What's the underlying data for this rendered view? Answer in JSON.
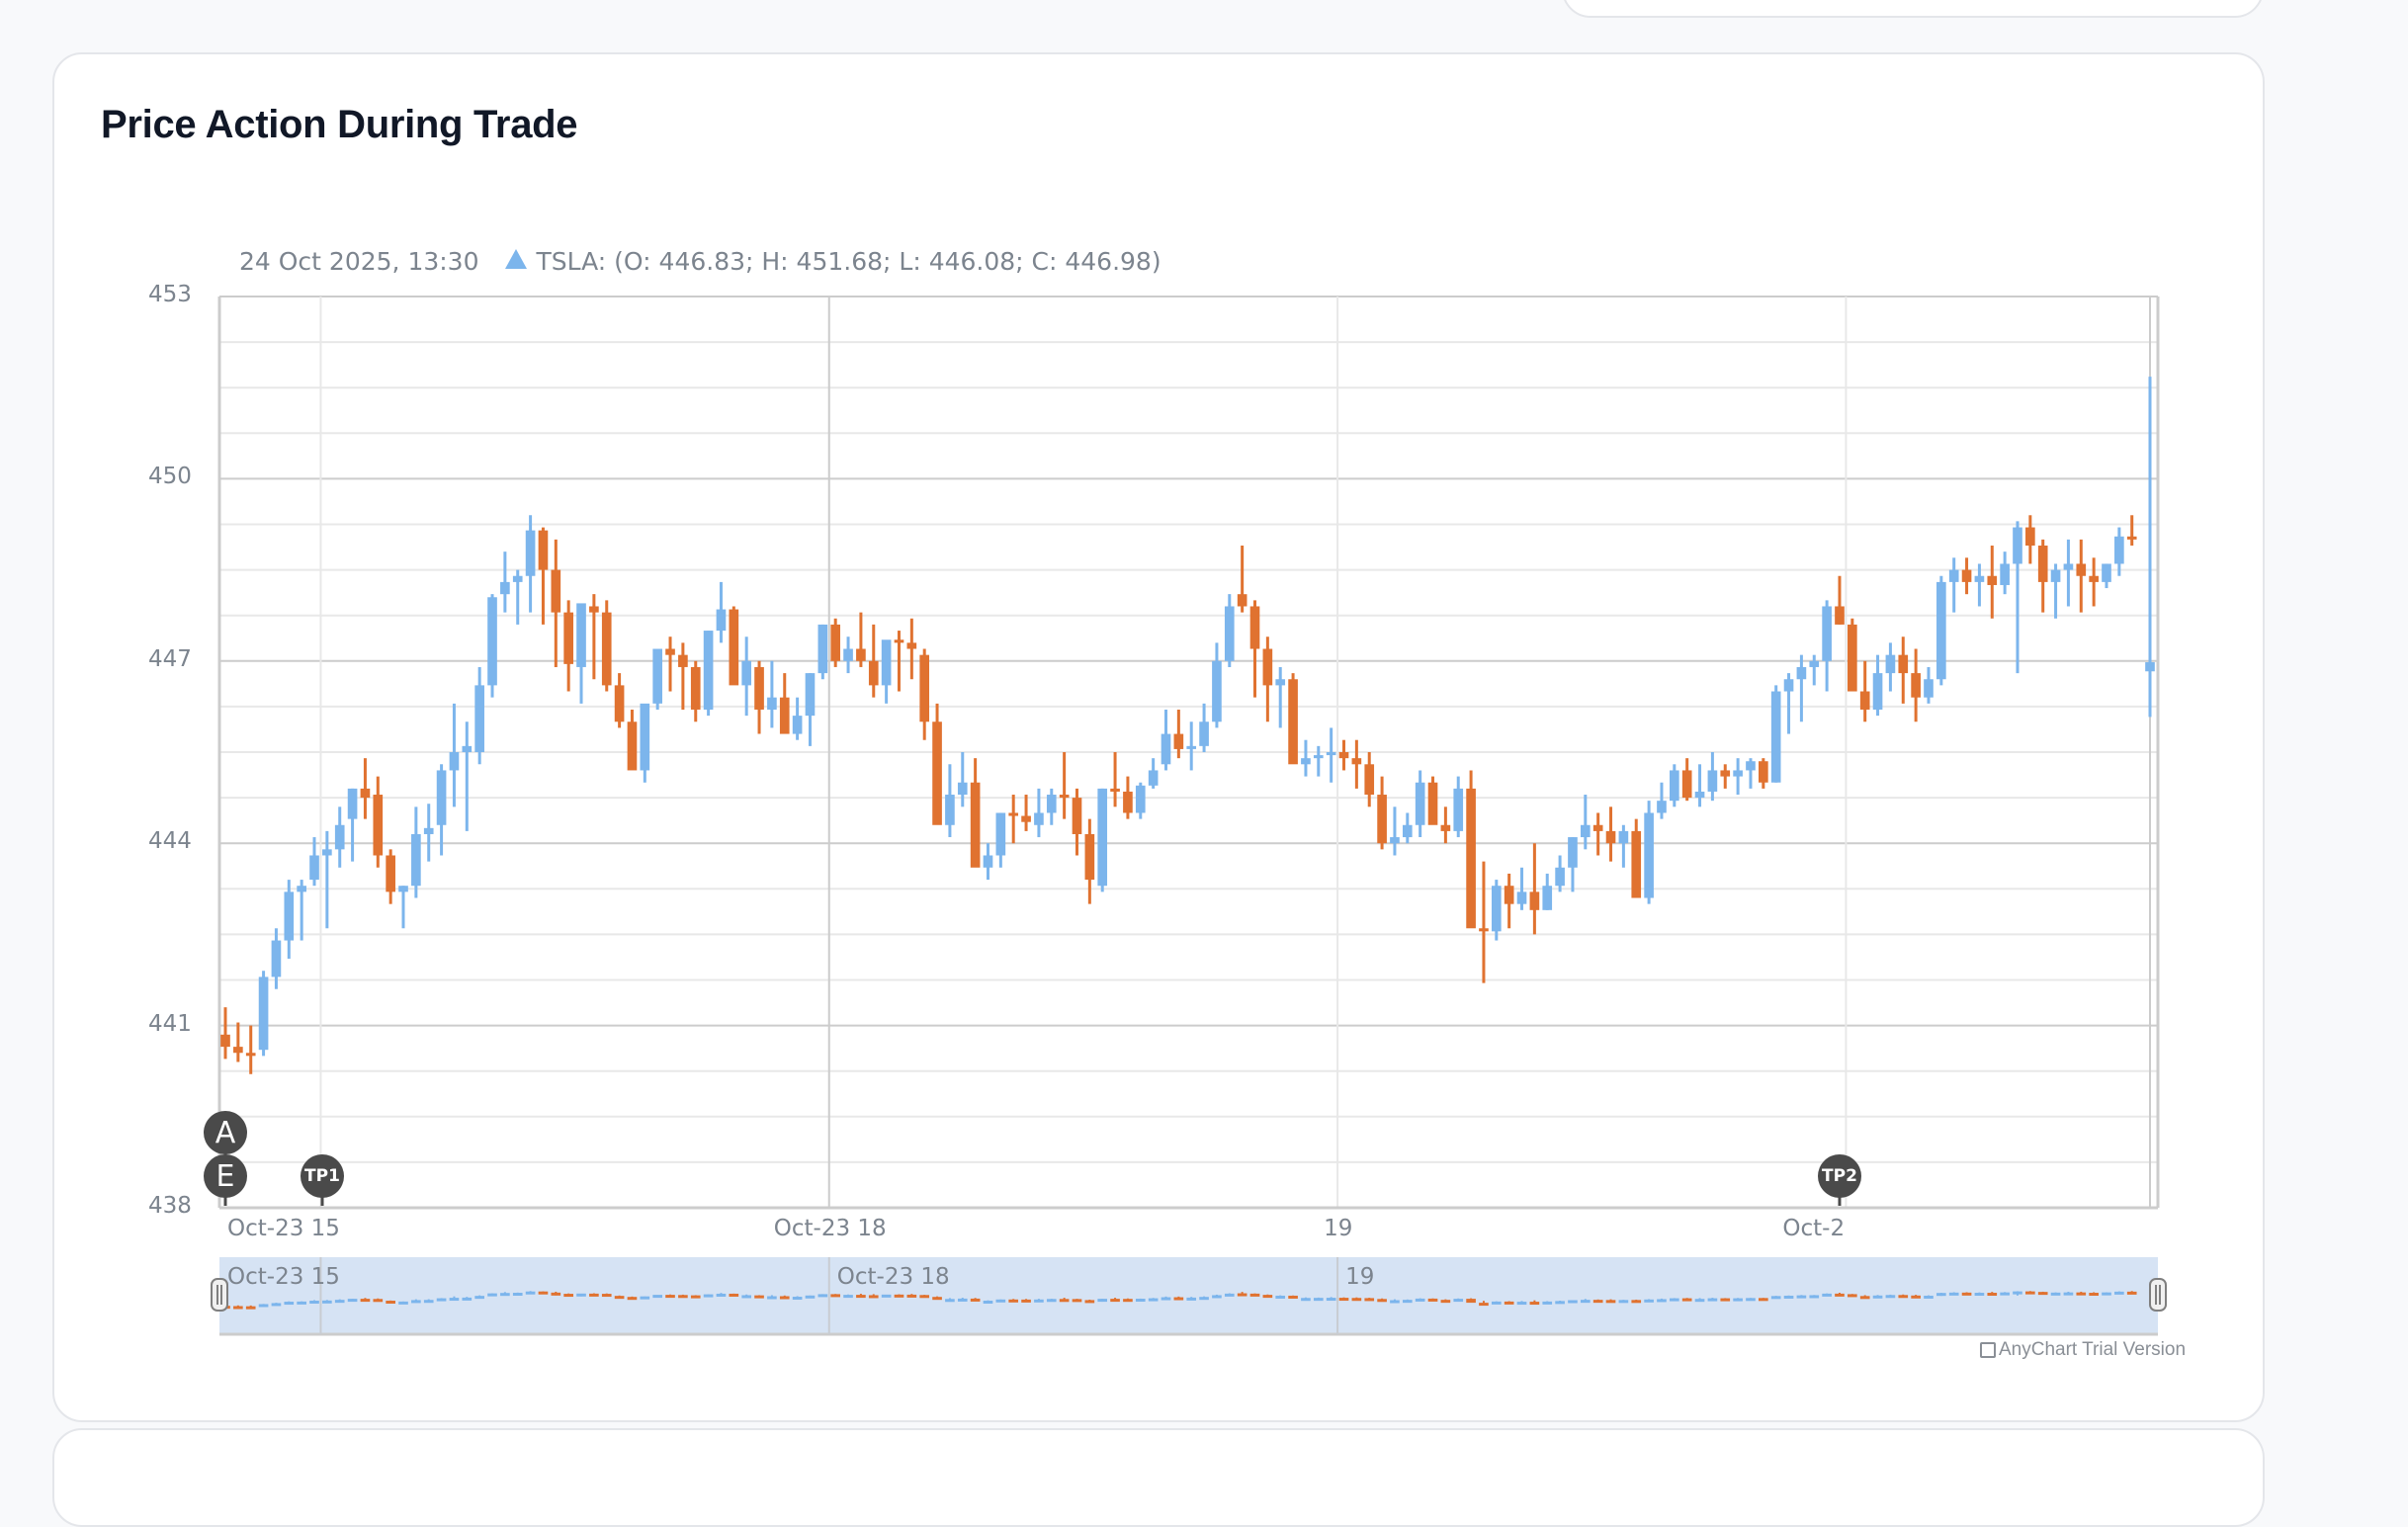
{
  "page": {
    "title": "Price Action During Trade"
  },
  "chart_legend": {
    "datetime": "24 Oct 2025, 13:30",
    "series_label": "TSLA: (O: 446.83; H: 451.68; L: 446.08; C: 446.98)"
  },
  "credits": {
    "label": "AnyChart Trial Version"
  },
  "colors": {
    "rising": "#7cb5ec",
    "falling": "#e07230",
    "marker": "#4a4a4a",
    "scroller_bg": "#d6e3f4",
    "grid_major": "#cccccc",
    "grid_minor": "#e8e8e8"
  },
  "markers": [
    {
      "label": "A",
      "candle_index": 0,
      "row": 0
    },
    {
      "label": "E",
      "candle_index": 0,
      "row": 1
    },
    {
      "label": "TP1",
      "candle_index": 7,
      "row": 1
    },
    {
      "label": "TP2",
      "candle_index": 127,
      "row": 1
    }
  ],
  "chart_data": {
    "type": "candlestick",
    "title": "Price Action During Trade",
    "series_name": "TSLA",
    "xlabel": "",
    "ylabel": "",
    "ylim": [
      438,
      453
    ],
    "yticks": [
      453,
      450,
      447,
      444,
      441,
      438
    ],
    "minor_step": 0.75,
    "xticks": [
      {
        "label": "Oct-23 15",
        "candle_index": 7.5
      },
      {
        "label": "Oct-23 18",
        "candle_index": 47.5
      },
      {
        "label": "19",
        "candle_index": 87.5
      },
      {
        "label": "Oct-2",
        "candle_index": 127.5
      }
    ],
    "scroller_labels": [
      {
        "label": "Oct-23 15",
        "candle_index": 7.5
      },
      {
        "label": "Oct-23 18",
        "candle_index": 47.5
      },
      {
        "label": "19",
        "candle_index": 87.5
      }
    ],
    "grid": true,
    "candles": [
      [
        440.85,
        441.3,
        440.45,
        440.65
      ],
      [
        440.65,
        441.05,
        440.4,
        440.55
      ],
      [
        440.55,
        441.0,
        440.2,
        440.5
      ],
      [
        440.6,
        441.9,
        440.5,
        441.8
      ],
      [
        441.8,
        442.6,
        441.6,
        442.4
      ],
      [
        442.4,
        443.4,
        442.1,
        443.2
      ],
      [
        443.2,
        443.4,
        442.4,
        443.3
      ],
      [
        443.4,
        444.1,
        443.3,
        443.8
      ],
      [
        443.8,
        444.2,
        442.6,
        443.9
      ],
      [
        443.9,
        444.6,
        443.6,
        444.3
      ],
      [
        444.4,
        444.9,
        443.7,
        444.9
      ],
      [
        444.9,
        445.4,
        444.4,
        444.75
      ],
      [
        444.8,
        445.1,
        443.6,
        443.8
      ],
      [
        443.8,
        443.9,
        443.0,
        443.2
      ],
      [
        443.2,
        443.3,
        442.6,
        443.3
      ],
      [
        443.3,
        444.6,
        443.1,
        444.15
      ],
      [
        444.15,
        444.65,
        443.7,
        444.25
      ],
      [
        444.3,
        445.3,
        443.8,
        445.2
      ],
      [
        445.2,
        446.3,
        444.6,
        445.5
      ],
      [
        445.5,
        446.0,
        444.2,
        445.6
      ],
      [
        445.5,
        446.9,
        445.3,
        446.6
      ],
      [
        446.6,
        448.1,
        446.4,
        448.05
      ],
      [
        448.1,
        448.8,
        447.8,
        448.3
      ],
      [
        448.3,
        448.5,
        447.6,
        448.4
      ],
      [
        448.4,
        449.4,
        447.8,
        449.15
      ],
      [
        449.15,
        449.2,
        447.6,
        448.5
      ],
      [
        448.5,
        449.0,
        446.9,
        447.8
      ],
      [
        447.8,
        448.0,
        446.5,
        446.95
      ],
      [
        446.9,
        447.8,
        446.3,
        447.95
      ],
      [
        447.9,
        448.1,
        446.7,
        447.8
      ],
      [
        447.8,
        448.0,
        446.5,
        446.6
      ],
      [
        446.6,
        446.8,
        445.9,
        446.0
      ],
      [
        446.0,
        446.2,
        445.3,
        445.2
      ],
      [
        445.2,
        446.2,
        445.0,
        446.3
      ],
      [
        446.3,
        447.0,
        446.2,
        447.2
      ],
      [
        447.2,
        447.4,
        446.5,
        447.1
      ],
      [
        447.1,
        447.3,
        446.2,
        446.9
      ],
      [
        446.9,
        447.0,
        446.0,
        446.2
      ],
      [
        446.2,
        447.5,
        446.1,
        447.5
      ],
      [
        447.5,
        448.3,
        447.3,
        447.85
      ],
      [
        447.85,
        447.9,
        446.8,
        446.6
      ],
      [
        446.6,
        447.4,
        446.1,
        447.0
      ],
      [
        446.9,
        447.0,
        445.8,
        446.2
      ],
      [
        446.2,
        447.0,
        445.9,
        446.4
      ],
      [
        446.4,
        446.8,
        445.9,
        445.8
      ],
      [
        445.8,
        446.4,
        445.7,
        446.1
      ],
      [
        446.1,
        446.8,
        445.6,
        446.8
      ],
      [
        446.8,
        447.6,
        446.7,
        447.6
      ],
      [
        447.6,
        447.7,
        446.9,
        447.0
      ],
      [
        447.0,
        447.4,
        446.8,
        447.2
      ],
      [
        447.2,
        447.8,
        446.9,
        447.0
      ],
      [
        447.0,
        447.6,
        446.4,
        446.6
      ],
      [
        446.6,
        447.1,
        446.3,
        447.35
      ],
      [
        447.35,
        447.5,
        446.5,
        447.3
      ],
      [
        447.3,
        447.7,
        446.7,
        447.2
      ],
      [
        447.1,
        447.2,
        445.7,
        446.0
      ],
      [
        446.0,
        446.3,
        444.8,
        444.3
      ],
      [
        444.3,
        445.3,
        444.1,
        444.8
      ],
      [
        444.8,
        445.5,
        444.6,
        445.0
      ],
      [
        445.0,
        445.4,
        443.8,
        443.6
      ],
      [
        443.6,
        444.0,
        443.4,
        443.8
      ],
      [
        443.8,
        444.5,
        443.6,
        444.5
      ],
      [
        444.5,
        444.8,
        444.0,
        444.45
      ],
      [
        444.45,
        444.8,
        444.2,
        444.35
      ],
      [
        444.3,
        444.9,
        444.1,
        444.5
      ],
      [
        444.5,
        444.9,
        444.3,
        444.8
      ],
      [
        444.8,
        445.5,
        444.4,
        444.75
      ],
      [
        444.75,
        444.9,
        443.8,
        444.15
      ],
      [
        444.15,
        444.4,
        443.0,
        443.4
      ],
      [
        443.3,
        444.9,
        443.2,
        444.9
      ],
      [
        444.9,
        445.5,
        444.6,
        444.85
      ],
      [
        444.85,
        445.1,
        444.4,
        444.5
      ],
      [
        444.5,
        445.0,
        444.4,
        444.95
      ],
      [
        444.95,
        445.4,
        444.9,
        445.2
      ],
      [
        445.3,
        446.2,
        445.2,
        445.8
      ],
      [
        445.8,
        446.2,
        445.4,
        445.55
      ],
      [
        445.55,
        446.0,
        445.2,
        445.6
      ],
      [
        445.6,
        446.3,
        445.5,
        446.0
      ],
      [
        446.0,
        447.3,
        445.9,
        447.0
      ],
      [
        447.0,
        448.1,
        446.9,
        447.9
      ],
      [
        448.1,
        448.9,
        447.8,
        447.9
      ],
      [
        447.9,
        448.0,
        446.4,
        447.2
      ],
      [
        447.2,
        447.4,
        446.0,
        446.6
      ],
      [
        446.6,
        446.9,
        445.9,
        446.7
      ],
      [
        446.7,
        446.8,
        445.4,
        445.3
      ],
      [
        445.3,
        445.7,
        445.1,
        445.4
      ],
      [
        445.4,
        445.6,
        445.1,
        445.45
      ],
      [
        445.45,
        445.9,
        445.0,
        445.5
      ],
      [
        445.5,
        445.7,
        445.2,
        445.4
      ],
      [
        445.4,
        445.7,
        444.9,
        445.3
      ],
      [
        445.3,
        445.5,
        444.6,
        444.8
      ],
      [
        444.8,
        445.1,
        443.9,
        444.0
      ],
      [
        444.0,
        444.6,
        443.8,
        444.1
      ],
      [
        444.1,
        444.5,
        444.0,
        444.3
      ],
      [
        444.3,
        445.2,
        444.1,
        445.0
      ],
      [
        445.0,
        445.1,
        444.4,
        444.3
      ],
      [
        444.3,
        444.6,
        444.0,
        444.2
      ],
      [
        444.2,
        445.1,
        444.1,
        444.9
      ],
      [
        444.9,
        445.2,
        443.2,
        442.6
      ],
      [
        442.6,
        443.7,
        441.7,
        442.55
      ],
      [
        442.55,
        443.4,
        442.4,
        443.3
      ],
      [
        443.3,
        443.5,
        442.6,
        443.0
      ],
      [
        443.0,
        443.6,
        442.9,
        443.2
      ],
      [
        443.2,
        444.0,
        442.5,
        442.9
      ],
      [
        442.9,
        443.5,
        442.9,
        443.3
      ],
      [
        443.3,
        443.8,
        443.2,
        443.6
      ],
      [
        443.6,
        444.1,
        443.2,
        444.1
      ],
      [
        444.1,
        444.8,
        443.9,
        444.3
      ],
      [
        444.3,
        444.5,
        443.8,
        444.2
      ],
      [
        444.2,
        444.6,
        443.7,
        444.0
      ],
      [
        444.0,
        444.3,
        443.6,
        444.2
      ],
      [
        444.2,
        444.4,
        443.1,
        443.1
      ],
      [
        443.1,
        444.7,
        443.0,
        444.5
      ],
      [
        444.5,
        445.0,
        444.4,
        444.7
      ],
      [
        444.7,
        445.3,
        444.6,
        445.2
      ],
      [
        445.2,
        445.4,
        444.7,
        444.75
      ],
      [
        444.75,
        445.3,
        444.6,
        444.85
      ],
      [
        444.85,
        445.5,
        444.7,
        445.2
      ],
      [
        445.2,
        445.3,
        444.9,
        445.1
      ],
      [
        445.1,
        445.4,
        444.8,
        445.2
      ],
      [
        445.2,
        445.4,
        444.9,
        445.35
      ],
      [
        445.35,
        445.4,
        444.9,
        445.0
      ],
      [
        445.0,
        446.6,
        445.0,
        446.5
      ],
      [
        446.5,
        446.8,
        445.8,
        446.7
      ],
      [
        446.7,
        447.1,
        446.0,
        446.9
      ],
      [
        446.9,
        447.1,
        446.6,
        447.0
      ],
      [
        447.0,
        448.0,
        446.5,
        447.9
      ],
      [
        447.9,
        448.4,
        447.6,
        447.6
      ],
      [
        447.6,
        447.7,
        446.5,
        446.5
      ],
      [
        446.5,
        447.0,
        446.0,
        446.2
      ],
      [
        446.2,
        447.1,
        446.1,
        446.8
      ],
      [
        446.8,
        447.3,
        446.5,
        447.1
      ],
      [
        447.1,
        447.4,
        446.3,
        446.8
      ],
      [
        446.8,
        447.2,
        446.0,
        446.4
      ],
      [
        446.4,
        446.9,
        446.3,
        446.7
      ],
      [
        446.7,
        448.4,
        446.6,
        448.3
      ],
      [
        448.3,
        448.7,
        447.8,
        448.5
      ],
      [
        448.5,
        448.7,
        448.1,
        448.3
      ],
      [
        448.3,
        448.6,
        447.9,
        448.4
      ],
      [
        448.4,
        448.9,
        447.7,
        448.25
      ],
      [
        448.25,
        448.8,
        448.1,
        448.6
      ],
      [
        448.6,
        449.3,
        446.8,
        449.2
      ],
      [
        449.2,
        449.4,
        448.6,
        448.9
      ],
      [
        448.9,
        449.0,
        447.8,
        448.3
      ],
      [
        448.3,
        448.6,
        447.7,
        448.5
      ],
      [
        448.5,
        449.0,
        447.9,
        448.6
      ],
      [
        448.6,
        449.0,
        447.8,
        448.4
      ],
      [
        448.4,
        448.7,
        447.9,
        448.3
      ],
      [
        448.3,
        448.6,
        448.2,
        448.6
      ],
      [
        448.6,
        449.2,
        448.4,
        449.05
      ],
      [
        449.05,
        449.4,
        448.9,
        449.0
      ],
      [
        446.83,
        451.68,
        446.08,
        446.98
      ]
    ]
  },
  "scroller": {
    "range": "full"
  }
}
